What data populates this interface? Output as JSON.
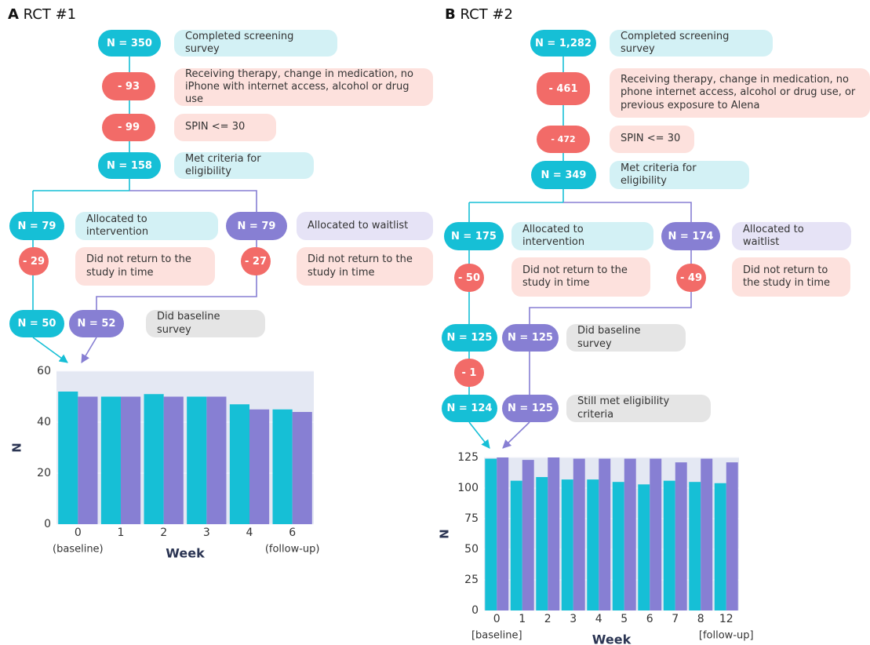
{
  "panels": [
    {
      "label": "A",
      "title": "RCT #1",
      "nodes": [
        {
          "count": "N = 350",
          "text": "Completed screening survey"
        },
        {
          "count": "- 93",
          "text": "Receiving therapy, change in medication, no iPhone with internet access, alcohol or drug use"
        },
        {
          "count": "- 99",
          "text": "SPIN <= 30"
        },
        {
          "count": "N = 158",
          "text": "Met criteria for eligibility"
        },
        {
          "count": "N = 79",
          "text": "Allocated to intervention"
        },
        {
          "count": "N = 79",
          "text": "Allocated to waitlist"
        },
        {
          "count": "- 29",
          "text": "Did not return to the study in time"
        },
        {
          "count": "- 27",
          "text": "Did not return to the study in time"
        },
        {
          "counts": [
            "N = 50",
            "N = 52"
          ],
          "text": "Did baseline survey"
        }
      ]
    },
    {
      "label": "B",
      "title": "RCT #2",
      "nodes": [
        {
          "count": "N = 1,282",
          "text": "Completed screening survey"
        },
        {
          "count": "- 461",
          "text": "Receiving therapy, change in medication, no phone internet access, alcohol or drug use, or previous exposure to Alena"
        },
        {
          "count": "- 472",
          "text": "SPIN <= 30"
        },
        {
          "count": "N = 349",
          "text": "Met criteria for eligibility"
        },
        {
          "count": "N = 175",
          "text": "Allocated to intervention"
        },
        {
          "count": "N = 174",
          "text": "Allocated to waitlist"
        },
        {
          "count": "- 50",
          "text": "Did not return to the study in time"
        },
        {
          "count": "- 49",
          "text": "Did not return to the study in time"
        },
        {
          "counts": [
            "N = 125",
            "N = 125"
          ],
          "text": "Did baseline survey"
        },
        {
          "count": "- 1"
        },
        {
          "counts": [
            "N = 124",
            "N = 125"
          ],
          "text": "Still met eligibility criteria"
        }
      ]
    }
  ],
  "chart_data": [
    {
      "type": "bar",
      "xlabel": "Week",
      "ylabel": "N",
      "categories": [
        "0",
        "1",
        "2",
        "3",
        "4",
        "6"
      ],
      "annotations": [
        "(baseline)",
        "(follow-up)"
      ],
      "series": [
        {
          "color": "#16bfd6",
          "values": [
            52,
            50,
            51,
            50,
            47,
            45
          ]
        },
        {
          "color": "#877fd3",
          "values": [
            50,
            50,
            50,
            50,
            45,
            44
          ]
        }
      ],
      "ylim": [
        0,
        60
      ],
      "yticks": [
        0,
        20,
        40,
        60
      ],
      "grid": true
    },
    {
      "type": "bar",
      "xlabel": "Week",
      "ylabel": "N",
      "categories": [
        "0",
        "1",
        "2",
        "3",
        "4",
        "5",
        "6",
        "7",
        "8",
        "12"
      ],
      "annotations": [
        "[baseline]",
        "[follow-up]"
      ],
      "series": [
        {
          "color": "#16bfd6",
          "values": [
            124,
            106,
            109,
            107,
            107,
            105,
            103,
            106,
            105,
            104
          ]
        },
        {
          "color": "#877fd3",
          "values": [
            125,
            123,
            125,
            124,
            124,
            124,
            124,
            121,
            124,
            121
          ]
        }
      ],
      "ylim": [
        0,
        125
      ],
      "yticks": [
        0,
        25,
        50,
        75,
        100,
        125
      ],
      "grid": true
    }
  ]
}
